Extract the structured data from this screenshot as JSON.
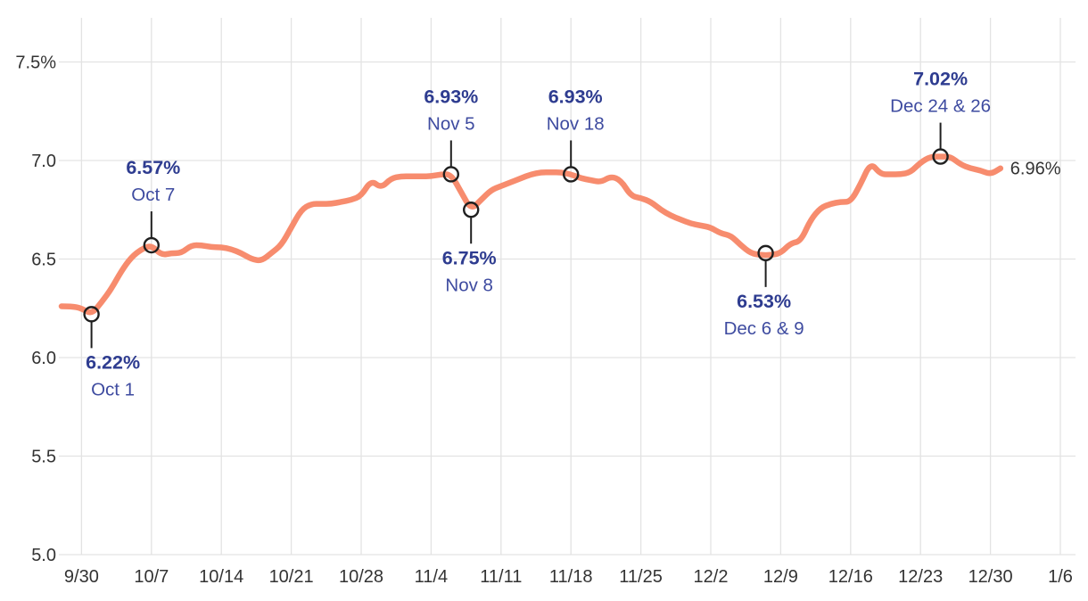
{
  "chart_data": {
    "type": "line",
    "title": "",
    "unit": "%",
    "ylim": [
      5.0,
      7.5
    ],
    "grid": true,
    "legend": "none",
    "x": [
      "9/28",
      "9/29",
      "9/30",
      "10/1",
      "10/2",
      "10/3",
      "10/4",
      "10/5",
      "10/6",
      "10/7",
      "10/8",
      "10/9",
      "10/10",
      "10/11",
      "10/12",
      "10/13",
      "10/14",
      "10/15",
      "10/16",
      "10/17",
      "10/18",
      "10/19",
      "10/20",
      "10/21",
      "10/22",
      "10/23",
      "10/24",
      "10/25",
      "10/26",
      "10/27",
      "10/28",
      "10/29",
      "10/30",
      "10/31",
      "11/1",
      "11/2",
      "11/3",
      "11/4",
      "11/5",
      "11/6",
      "11/7",
      "11/8",
      "11/9",
      "11/10",
      "11/11",
      "11/12",
      "11/13",
      "11/14",
      "11/15",
      "11/16",
      "11/17",
      "11/18",
      "11/19",
      "11/20",
      "11/21",
      "11/22",
      "11/23",
      "11/24",
      "11/25",
      "11/26",
      "11/27",
      "11/28",
      "11/29",
      "11/30",
      "12/1",
      "12/2",
      "12/3",
      "12/4",
      "12/5",
      "12/6",
      "12/7",
      "12/8",
      "12/9",
      "12/10",
      "12/11",
      "12/12",
      "12/13",
      "12/14",
      "12/15",
      "12/16",
      "12/17",
      "12/18",
      "12/19",
      "12/20",
      "12/21",
      "12/22",
      "12/23",
      "12/24",
      "12/25",
      "12/26",
      "12/27",
      "12/28",
      "12/29",
      "12/30",
      "12/31"
    ],
    "values": [
      6.26,
      6.26,
      6.25,
      6.22,
      6.28,
      6.35,
      6.44,
      6.51,
      6.55,
      6.57,
      6.52,
      6.53,
      6.53,
      6.57,
      6.57,
      6.56,
      6.56,
      6.55,
      6.53,
      6.5,
      6.49,
      6.53,
      6.57,
      6.66,
      6.75,
      6.78,
      6.78,
      6.78,
      6.79,
      6.8,
      6.82,
      6.9,
      6.86,
      6.91,
      6.92,
      6.92,
      6.92,
      6.92,
      6.93,
      6.93,
      6.84,
      6.75,
      6.8,
      6.85,
      6.87,
      6.89,
      6.91,
      6.93,
      6.94,
      6.94,
      6.94,
      6.93,
      6.91,
      6.9,
      6.89,
      6.92,
      6.9,
      6.82,
      6.81,
      6.79,
      6.75,
      6.72,
      6.7,
      6.68,
      6.67,
      6.66,
      6.63,
      6.62,
      6.57,
      6.53,
      6.52,
      6.52,
      6.53,
      6.58,
      6.59,
      6.7,
      6.76,
      6.78,
      6.79,
      6.79,
      6.88,
      6.99,
      6.93,
      6.93,
      6.93,
      6.94,
      6.99,
      7.02,
      7.02,
      7.02,
      6.98,
      6.96,
      6.95,
      6.93,
      6.96
    ],
    "y_ticks": [
      {
        "value": 7.5,
        "label": "7.5%"
      },
      {
        "value": 7.0,
        "label": "7.0"
      },
      {
        "value": 6.5,
        "label": "6.5"
      },
      {
        "value": 6.0,
        "label": "6.0"
      },
      {
        "value": 5.5,
        "label": "5.5"
      },
      {
        "value": 5.0,
        "label": "5.0"
      }
    ],
    "x_ticks": [
      {
        "day": 2,
        "label": "9/30"
      },
      {
        "day": 9,
        "label": "10/7"
      },
      {
        "day": 16,
        "label": "10/14"
      },
      {
        "day": 23,
        "label": "10/21"
      },
      {
        "day": 30,
        "label": "10/28"
      },
      {
        "day": 37,
        "label": "11/4"
      },
      {
        "day": 44,
        "label": "11/11"
      },
      {
        "day": 51,
        "label": "11/18"
      },
      {
        "day": 58,
        "label": "11/25"
      },
      {
        "day": 65,
        "label": "12/2"
      },
      {
        "day": 72,
        "label": "12/9"
      },
      {
        "day": 79,
        "label": "12/16"
      },
      {
        "day": 86,
        "label": "12/23"
      },
      {
        "day": 93,
        "label": "12/30"
      },
      {
        "day": 100,
        "label": "1/6"
      }
    ],
    "annotations": [
      {
        "value_label": "6.22%",
        "date_label": "Oct 1",
        "day": 3,
        "value": 6.22,
        "side": "below",
        "label_dx": 24
      },
      {
        "value_label": "6.57%",
        "date_label": "Oct 7",
        "day": 9,
        "value": 6.57,
        "side": "above",
        "label_dx": 2
      },
      {
        "value_label": "6.93%",
        "date_label": "Nov 5",
        "day": 39,
        "value": 6.93,
        "side": "above",
        "label_dx": 0
      },
      {
        "value_label": "6.75%",
        "date_label": "Nov 8",
        "day": 41,
        "value": 6.75,
        "side": "below",
        "label_dx": -2
      },
      {
        "value_label": "6.93%",
        "date_label": "Nov 18",
        "day": 51,
        "value": 6.93,
        "side": "above",
        "label_dx": 5
      },
      {
        "value_label": "6.53%",
        "date_label": "Dec 6 & 9",
        "day": 70.5,
        "value": 6.53,
        "side": "below",
        "label_dx": -2
      },
      {
        "value_label": "7.02%",
        "date_label": "Dec 24 & 26",
        "day": 88,
        "value": 7.02,
        "side": "above",
        "label_dx": 0
      }
    ],
    "end_label": "6.96%",
    "colors": {
      "background": "#FFFFFF",
      "line": "#F78C6E",
      "grid": "#E3E3E3",
      "axis_text": "#333333",
      "annotation_value": "#2E3C90",
      "annotation_date": "#3E4BA0",
      "marker_stroke": "#1F1F1F",
      "stem": "#1F1F1F",
      "end_label_color": "#333333"
    }
  }
}
